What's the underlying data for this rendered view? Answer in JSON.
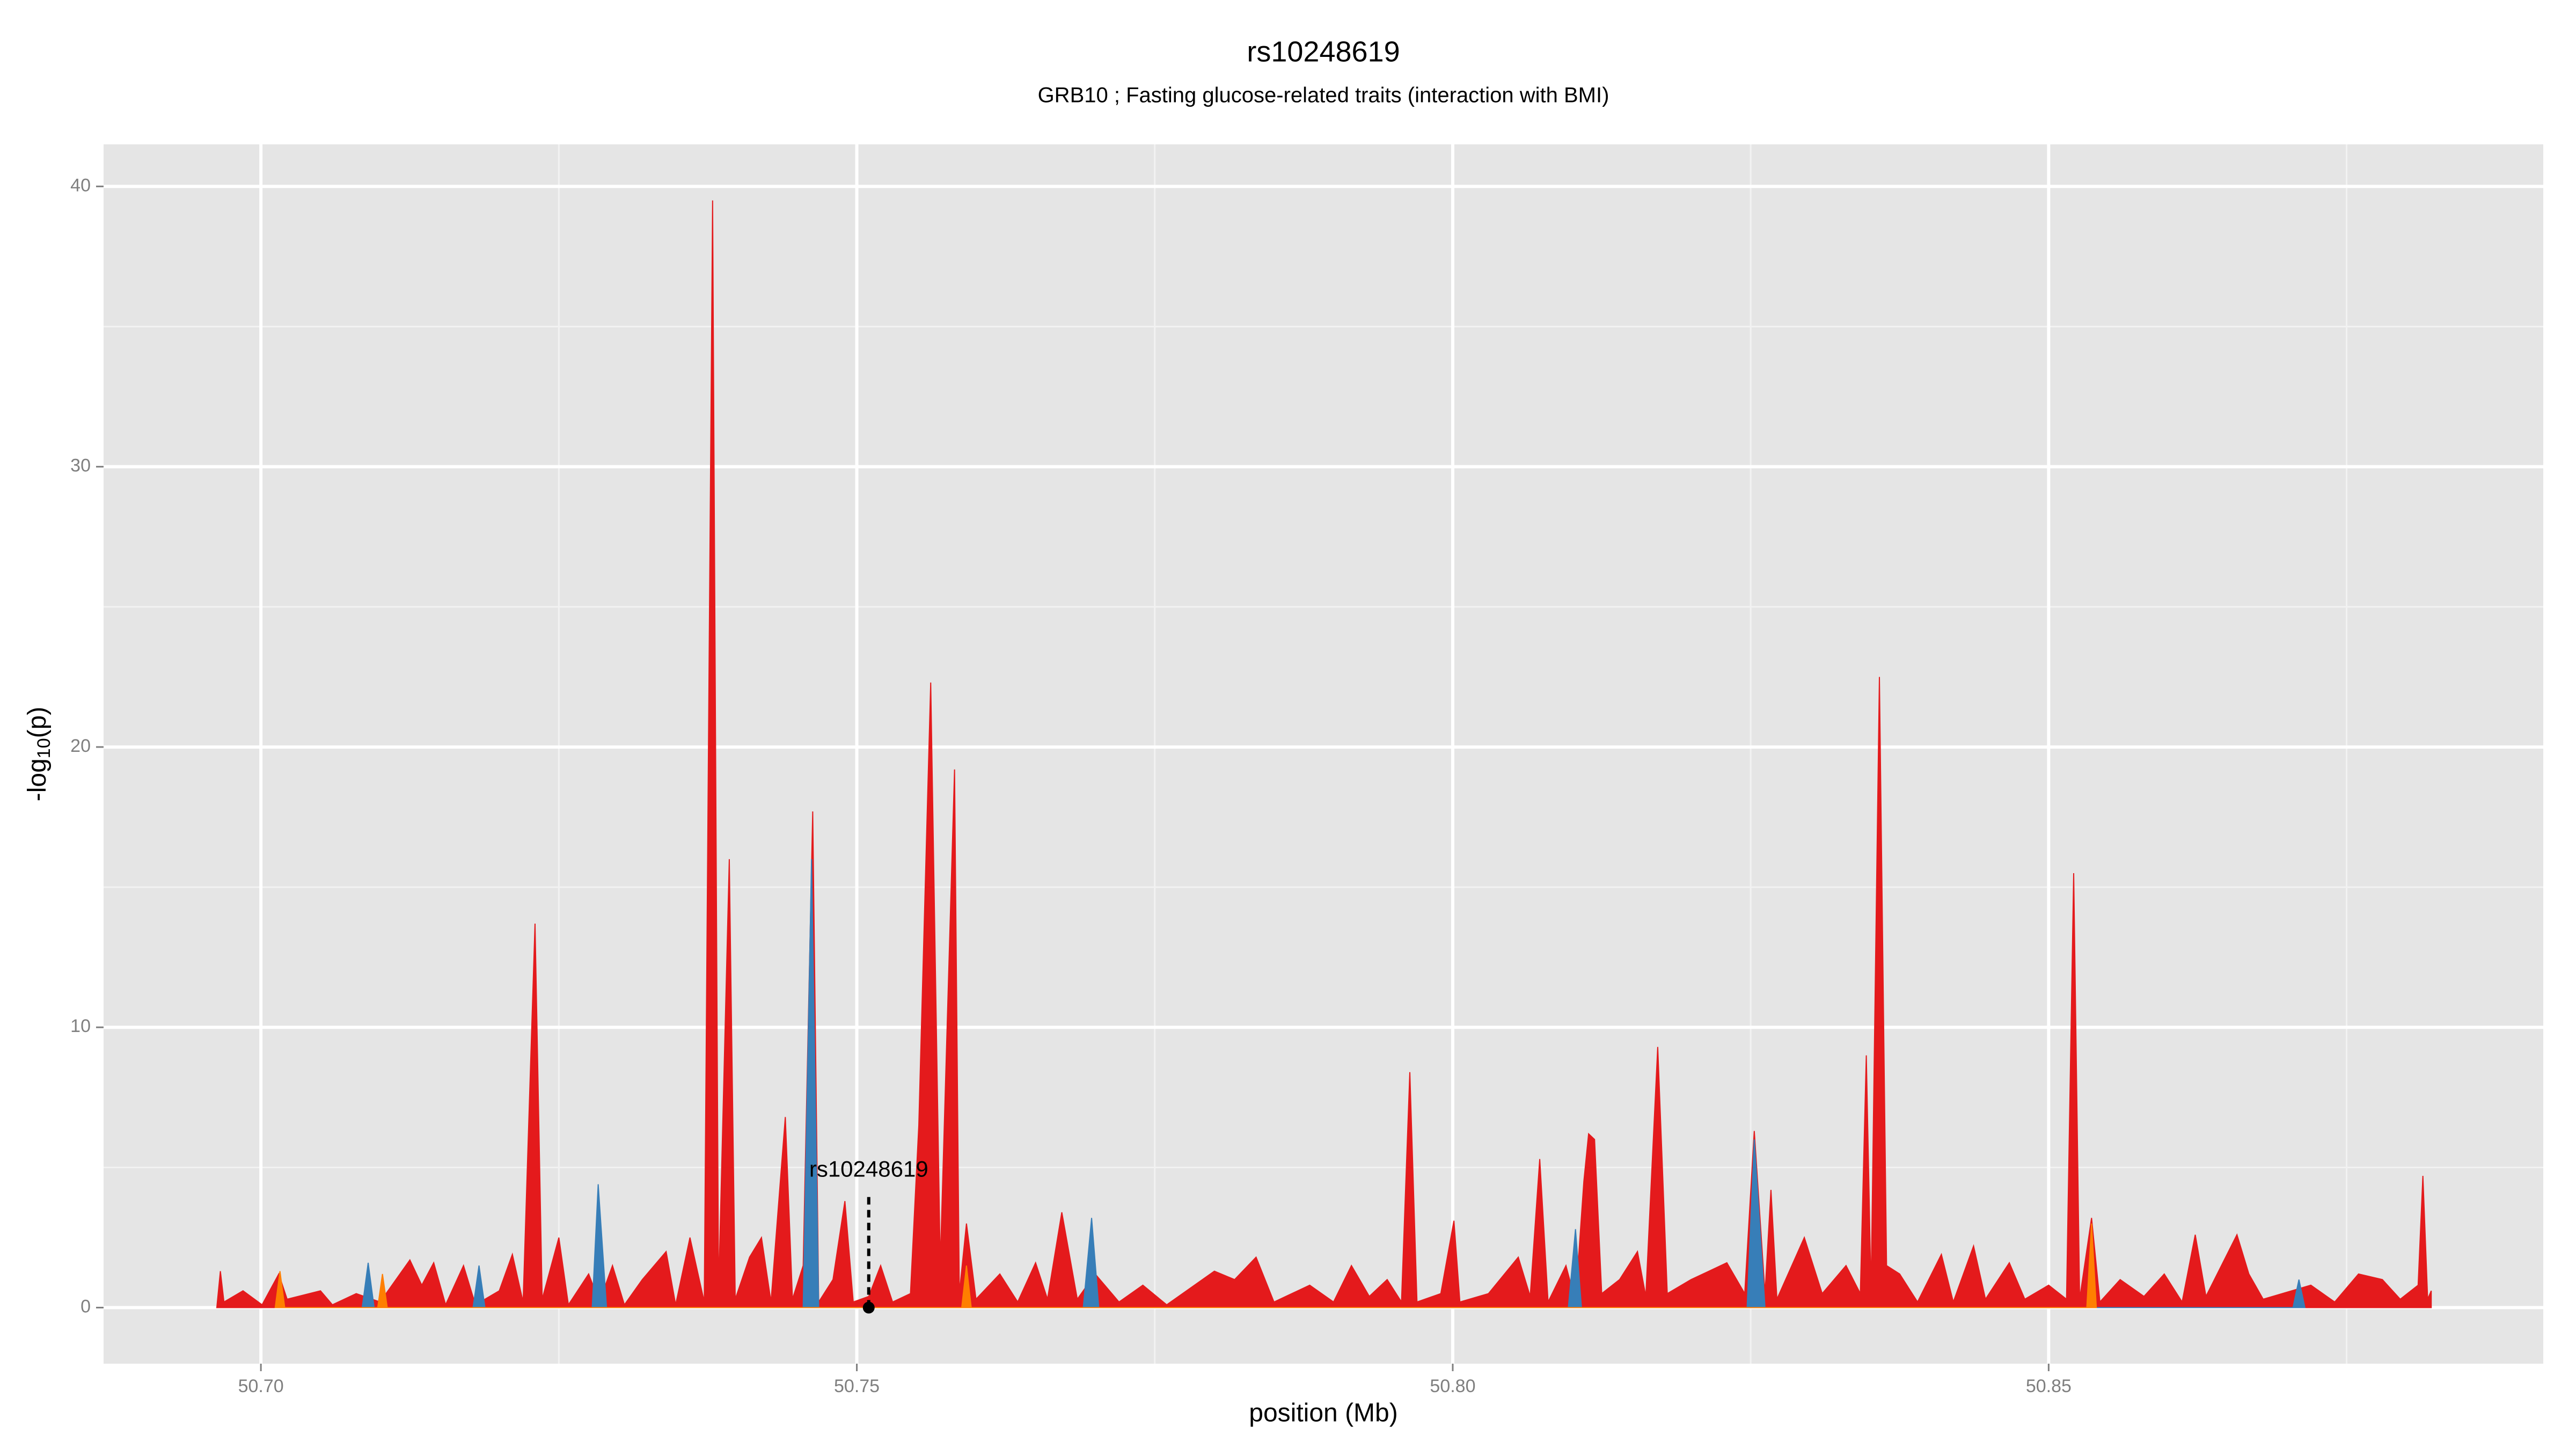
{
  "chart_data": {
    "type": "area",
    "title": "rs10248619",
    "subtitle": "GRB10 ; Fasting glucose-related traits (interaction with BMI)",
    "x_label": "position (Mb)",
    "y_label": {
      "pre": "-log",
      "sub": "10",
      "post": "(p)"
    },
    "xlim": [
      50.6868,
      50.8915
    ],
    "ylim": [
      -2,
      41.5
    ],
    "xticks": [
      {
        "value": 50.7,
        "label": "50.70"
      },
      50.75,
      {
        "value": 50.8,
        "label": "50.80"
      },
      50.85
    ],
    "yticks": [
      0,
      10,
      20,
      30,
      40
    ],
    "minor_xticks": [
      50.725,
      50.775,
      50.825,
      50.875
    ],
    "minor_yticks": [
      5,
      15,
      25,
      35
    ],
    "grid": true,
    "series": [
      {
        "color": "#e41a1c",
        "x": [
          50.6963,
          50.6966,
          50.6969,
          50.6985,
          50.7001,
          50.7015,
          50.7022,
          50.705,
          50.706,
          50.708,
          50.71,
          50.7125,
          50.7135,
          50.7145,
          50.7155,
          50.717,
          50.718,
          50.72,
          50.7211,
          50.722,
          50.723,
          50.7236,
          50.725,
          50.7258,
          50.7275,
          50.7284,
          50.7295,
          50.7305,
          50.732,
          50.734,
          50.7348,
          50.736,
          50.7372,
          50.7379,
          50.7384,
          50.7393,
          50.7398,
          50.741,
          50.742,
          50.7428,
          50.744,
          50.7446,
          50.7455,
          50.7463,
          50.7468,
          50.748,
          50.749,
          50.7497,
          50.751,
          50.752,
          50.753,
          50.7545,
          50.7552,
          50.7562,
          50.757,
          50.7582,
          50.7586,
          50.7592,
          50.76,
          50.762,
          50.7635,
          50.765,
          50.766,
          50.7672,
          50.7685,
          50.77,
          50.772,
          50.774,
          50.776,
          50.78,
          50.7817,
          50.7835,
          50.785,
          50.788,
          50.79,
          50.7915,
          50.793,
          50.7945,
          50.7957,
          50.7964,
          50.797,
          50.799,
          50.8001,
          50.8006,
          50.803,
          50.8055,
          50.8065,
          50.8073,
          50.808,
          50.8095,
          50.8103,
          50.811,
          50.8114,
          50.8119,
          50.8125,
          50.814,
          50.8155,
          50.8162,
          50.8172,
          50.818,
          50.82,
          50.8215,
          50.823,
          50.8245,
          50.8253,
          50.8262,
          50.8267,
          50.8272,
          50.8295,
          50.831,
          50.833,
          50.8342,
          50.8347,
          50.8351,
          50.8358,
          50.8364,
          50.8375,
          50.839,
          50.841,
          50.842,
          50.8437,
          50.8447,
          50.8467,
          50.848,
          50.85,
          50.8515,
          50.8521,
          50.8526,
          50.8536,
          50.8543,
          50.856,
          50.858,
          50.8597,
          50.8612,
          50.8623,
          50.8632,
          50.8658,
          50.8668,
          50.868,
          50.872,
          50.874,
          50.876,
          50.878,
          50.8795,
          50.881,
          50.8814,
          50.8818,
          50.8821
        ],
        "values": [
          0,
          1.3,
          0.2,
          0.6,
          0.1,
          1.2,
          0.3,
          0.6,
          0.1,
          0.5,
          0.2,
          1.7,
          0.8,
          1.6,
          0.1,
          1.5,
          0.1,
          0.6,
          1.9,
          0.2,
          13.7,
          0.3,
          2.5,
          0.1,
          1.2,
          0.2,
          1.5,
          0.1,
          1.0,
          2.0,
          0.1,
          2.5,
          0.2,
          39.5,
          0.5,
          16.0,
          0.3,
          1.8,
          2.5,
          0.2,
          6.8,
          0.3,
          1.5,
          17.7,
          0.2,
          1.0,
          3.8,
          0.2,
          0.4,
          1.5,
          0.2,
          0.5,
          6.5,
          22.3,
          1.5,
          19.2,
          0.5,
          3.0,
          0.3,
          1.2,
          0.2,
          1.6,
          0.3,
          3.4,
          0.3,
          1.2,
          0.2,
          0.8,
          0.1,
          1.3,
          1.0,
          1.8,
          0.2,
          0.8,
          0.2,
          1.5,
          0.4,
          1.0,
          0.2,
          8.4,
          0.2,
          0.5,
          3.1,
          0.2,
          0.5,
          1.8,
          0.4,
          5.3,
          0.2,
          1.5,
          0.2,
          4.5,
          6.2,
          6.0,
          0.5,
          1.0,
          2.0,
          0.4,
          9.3,
          0.5,
          1.0,
          1.3,
          1.6,
          0.5,
          6.3,
          0.5,
          4.2,
          0.3,
          2.5,
          0.5,
          1.5,
          0.5,
          9.0,
          0.5,
          22.5,
          1.5,
          1.2,
          0.2,
          1.9,
          0.2,
          2.2,
          0.3,
          1.6,
          0.3,
          0.8,
          0.3,
          15.5,
          0.3,
          3.2,
          0.2,
          1.0,
          0.4,
          1.2,
          0.2,
          2.6,
          0.4,
          2.6,
          1.2,
          0.3,
          0.8,
          0.2,
          1.2,
          1.0,
          0.3,
          0.8,
          4.7,
          0.3,
          0.6
        ]
      },
      {
        "color": "#377eb8",
        "x": [
          50.7085,
          50.709,
          50.7095,
          50.7178,
          50.7183,
          50.7188,
          50.7278,
          50.7283,
          50.729,
          50.7455,
          50.7462,
          50.7468,
          50.769,
          50.7697,
          50.7703,
          50.8097,
          50.8103,
          50.8108,
          50.8247,
          50.8253,
          50.8262,
          50.8705,
          50.871,
          50.8715
        ],
        "values": [
          0,
          1.6,
          0,
          0,
          1.5,
          0,
          0,
          4.4,
          0,
          0,
          16,
          0,
          0,
          3.2,
          0,
          0,
          2.8,
          0,
          0,
          6.0,
          0,
          0,
          1.0,
          0
        ]
      },
      {
        "color": "#ff7f00",
        "x": [
          50.7012,
          50.7016,
          50.702,
          50.7098,
          50.7102,
          50.7106,
          50.7588,
          50.7592,
          50.7596,
          50.8532,
          50.8536,
          50.854
        ],
        "values": [
          0,
          1.3,
          0,
          0,
          1.2,
          0,
          0,
          1.5,
          0,
          0,
          3.0,
          0
        ]
      }
    ],
    "annotation": {
      "text": "rs10248619",
      "x": 50.751,
      "y": 0
    }
  }
}
